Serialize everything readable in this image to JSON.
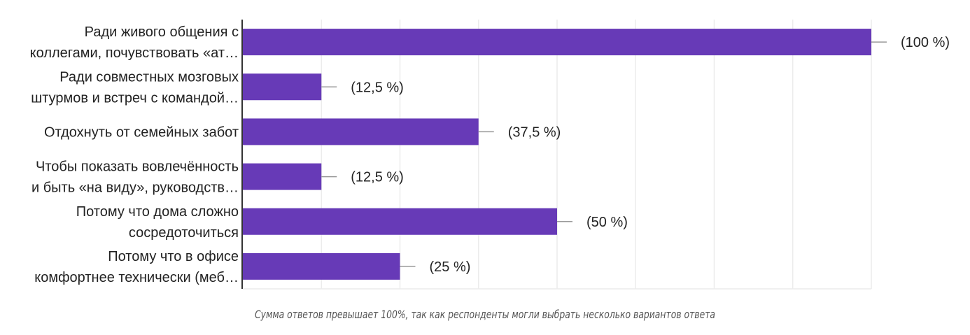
{
  "chart_data": {
    "type": "bar",
    "orientation": "horizontal",
    "categories": [
      [
        "Ради живого общения с",
        "коллегами, почувствовать «ат…"
      ],
      [
        "Ради совместных мозговых",
        "штурмов и встреч с командой…"
      ],
      [
        "Отдохнуть от семейных забот"
      ],
      [
        "Чтобы показать вовлечённость",
        "и быть «на виду», руководств…"
      ],
      [
        "Потому что дома сложно",
        "сосредоточиться"
      ],
      [
        "Потому что в офисе",
        "комфортнее технически (меб…"
      ]
    ],
    "values": [
      100,
      12.5,
      37.5,
      12.5,
      50,
      25
    ],
    "value_labels": [
      "(100 %)",
      "(12,5 %)",
      "(37,5 %)",
      "(12,5 %)",
      "(50 %)",
      "(25 %)"
    ],
    "xlim": [
      0,
      100
    ],
    "grid_step": 12.5,
    "grid": true,
    "legend": "none",
    "bar_color": "#673ab7",
    "caption": "Сумма ответов превышает 100%, так как респонденты могли выбрать несколько вариантов ответа"
  }
}
